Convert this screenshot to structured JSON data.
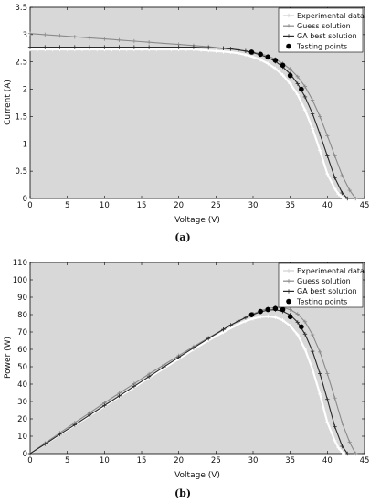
{
  "chart_data": [
    {
      "type": "line",
      "caption": "(a)",
      "xlabel": "Voltage (V)",
      "ylabel": "Current (A)",
      "xlim": [
        0,
        45
      ],
      "ylim": [
        0,
        3.5
      ],
      "xticks": [
        "0",
        "5",
        "10",
        "15",
        "20",
        "25",
        "30",
        "35",
        "40",
        "45"
      ],
      "yticks": [
        "0",
        "0.5",
        "1",
        "1.5",
        "2",
        "2.5",
        "3",
        "3.5"
      ],
      "legend_position": "top-right",
      "legend": [
        "Experimental data",
        "Guess solution",
        "GA best solution",
        "Testing points"
      ],
      "series": [
        {
          "name": "Experimental data",
          "color": "#ffffff",
          "x": [
            0,
            1,
            2,
            3,
            4,
            5,
            6,
            7,
            8,
            9,
            10,
            11,
            12,
            13,
            14,
            15,
            16,
            17,
            18,
            19,
            20,
            21,
            22,
            23,
            24,
            25,
            26,
            27,
            28,
            29,
            30,
            31,
            32,
            33,
            34,
            35,
            36,
            37,
            38,
            39,
            40,
            41,
            41.5,
            42,
            42.3
          ],
          "y": [
            2.73,
            2.73,
            2.73,
            2.73,
            2.73,
            2.73,
            2.73,
            2.73,
            2.73,
            2.73,
            2.73,
            2.73,
            2.73,
            2.73,
            2.73,
            2.73,
            2.73,
            2.73,
            2.73,
            2.73,
            2.73,
            2.73,
            2.73,
            2.72,
            2.71,
            2.7,
            2.69,
            2.68,
            2.66,
            2.63,
            2.59,
            2.54,
            2.47,
            2.38,
            2.26,
            2.1,
            1.9,
            1.62,
            1.28,
            0.88,
            0.45,
            0.18,
            0.08,
            0.02,
            0
          ]
        },
        {
          "name": "Guess solution",
          "color": "#808080",
          "x": [
            0,
            2,
            4,
            6,
            8,
            10,
            12,
            14,
            16,
            18,
            20,
            22,
            24,
            26,
            28,
            29,
            30,
            31,
            32,
            33,
            34,
            35,
            36,
            37,
            38,
            39,
            40,
            41,
            42,
            43,
            43.8
          ],
          "y": [
            3.02,
            3.0,
            2.98,
            2.96,
            2.94,
            2.92,
            2.9,
            2.88,
            2.86,
            2.84,
            2.82,
            2.8,
            2.78,
            2.75,
            2.72,
            2.7,
            2.68,
            2.65,
            2.61,
            2.55,
            2.47,
            2.37,
            2.23,
            2.05,
            1.8,
            1.5,
            1.15,
            0.78,
            0.42,
            0.15,
            0
          ]
        },
        {
          "name": "GA best solution",
          "color": "#333333",
          "x": [
            0,
            2,
            4,
            6,
            8,
            10,
            12,
            14,
            16,
            18,
            20,
            22,
            24,
            26,
            27,
            28,
            29,
            30,
            31,
            32,
            33,
            34,
            35,
            36,
            37,
            38,
            39,
            40,
            41,
            42,
            42.7
          ],
          "y": [
            2.77,
            2.77,
            2.77,
            2.77,
            2.77,
            2.77,
            2.77,
            2.77,
            2.77,
            2.77,
            2.77,
            2.77,
            2.76,
            2.75,
            2.74,
            2.72,
            2.7,
            2.67,
            2.63,
            2.58,
            2.51,
            2.41,
            2.28,
            2.1,
            1.86,
            1.55,
            1.18,
            0.78,
            0.38,
            0.1,
            0
          ]
        },
        {
          "name": "Testing points",
          "color": "#000000",
          "x": [
            29.8,
            31,
            32,
            33,
            34,
            35,
            36.5
          ],
          "y": [
            2.68,
            2.64,
            2.59,
            2.53,
            2.44,
            2.25,
            2.0
          ]
        }
      ]
    },
    {
      "type": "line",
      "caption": "(b)",
      "xlabel": "Voltage (V)",
      "ylabel": "Power (W)",
      "xlim": [
        0,
        45
      ],
      "ylim": [
        0,
        110
      ],
      "xticks": [
        "0",
        "5",
        "10",
        "15",
        "20",
        "25",
        "30",
        "35",
        "40",
        "45"
      ],
      "yticks": [
        "0",
        "10",
        "20",
        "30",
        "40",
        "50",
        "60",
        "70",
        "80",
        "90",
        "100",
        "110"
      ],
      "legend_position": "top-right",
      "legend": [
        "Experimental data",
        "Guess solution",
        "GA best solution",
        "Testing points"
      ],
      "series": [
        {
          "name": "Experimental data",
          "color": "#ffffff",
          "x": [
            0,
            2,
            4,
            6,
            8,
            10,
            12,
            14,
            16,
            18,
            20,
            22,
            24,
            26,
            28,
            29,
            30,
            31,
            32,
            33,
            34,
            35,
            36,
            37,
            38,
            39,
            40,
            41,
            41.5,
            42,
            42.3
          ],
          "y": [
            0,
            5.5,
            10.9,
            16.4,
            21.8,
            27.3,
            32.8,
            38.2,
            43.7,
            49.1,
            54.6,
            60,
            65.2,
            69.9,
            74.5,
            76.3,
            77.7,
            78.7,
            79.0,
            78.5,
            76.8,
            73.5,
            68.4,
            60.0,
            48.6,
            34.3,
            18.0,
            7.4,
            3.3,
            0.8,
            0
          ]
        },
        {
          "name": "Guess solution",
          "color": "#808080",
          "x": [
            0,
            2,
            4,
            6,
            8,
            10,
            12,
            14,
            16,
            18,
            20,
            22,
            24,
            26,
            28,
            29,
            30,
            31,
            32,
            33,
            34,
            35,
            36,
            37,
            38,
            39,
            40,
            41,
            42,
            43,
            43.8
          ],
          "y": [
            0,
            6,
            11.9,
            17.8,
            23.5,
            29.2,
            34.8,
            40.3,
            45.8,
            51.1,
            56.4,
            61.6,
            66.7,
            71.5,
            76.2,
            78.3,
            80.4,
            82.2,
            83.5,
            84.2,
            84.0,
            82.9,
            80.3,
            75.9,
            68.4,
            58.5,
            46,
            32,
            17.6,
            6.5,
            0
          ]
        },
        {
          "name": "GA best solution",
          "color": "#333333",
          "x": [
            0,
            2,
            4,
            6,
            8,
            10,
            12,
            14,
            16,
            18,
            20,
            22,
            24,
            26,
            27,
            28,
            29,
            30,
            31,
            32,
            33,
            34,
            35,
            36,
            37,
            38,
            39,
            40,
            41,
            42,
            42.7
          ],
          "y": [
            0,
            5.5,
            11.1,
            16.6,
            22.2,
            27.7,
            33.2,
            38.8,
            44.3,
            49.9,
            55.4,
            60.9,
            66.2,
            71.5,
            74,
            76.2,
            78.3,
            80.1,
            81.5,
            82.6,
            82.8,
            81.9,
            79.8,
            75.6,
            68.8,
            58.9,
            46,
            31.2,
            15.6,
            4.2,
            0
          ]
        },
        {
          "name": "Testing points",
          "color": "#000000",
          "x": [
            29.8,
            31,
            32,
            33,
            34,
            35,
            36.5
          ],
          "y": [
            79.9,
            81.8,
            82.9,
            83.5,
            82.9,
            78.8,
            73.0
          ]
        }
      ]
    }
  ]
}
